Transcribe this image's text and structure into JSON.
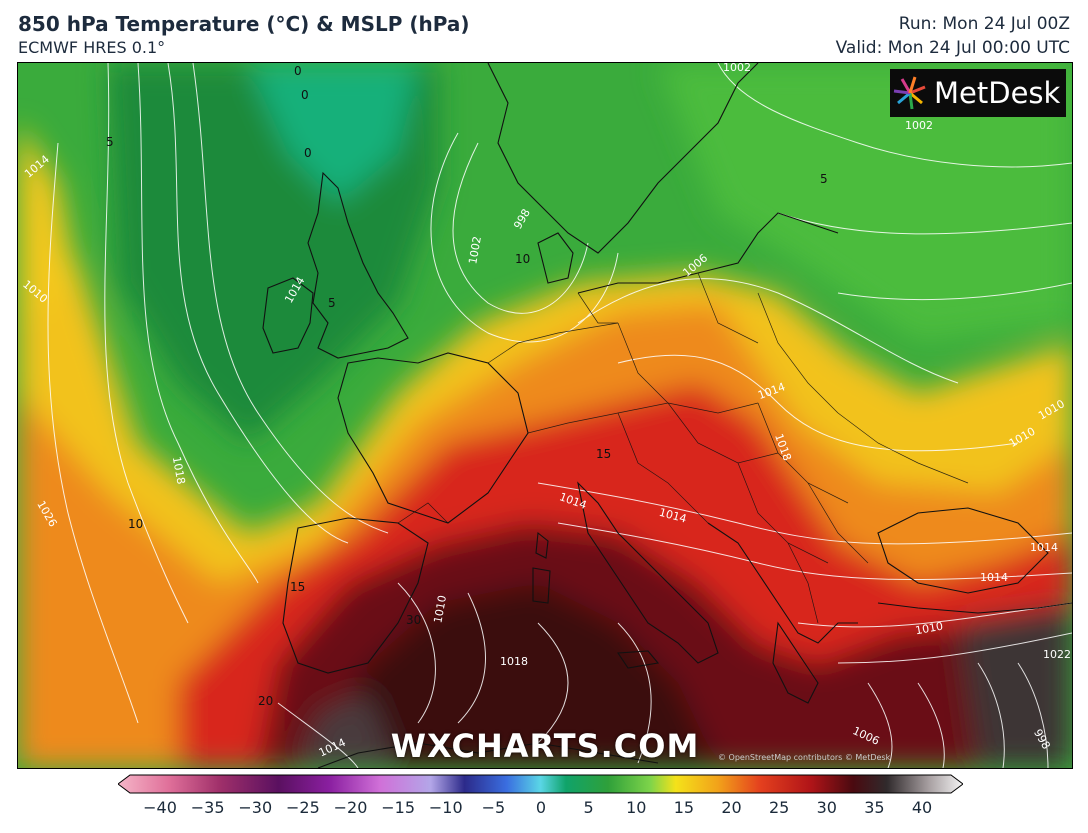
{
  "header": {
    "title": "850 hPa Temperature (°C) & MSLP (hPa)",
    "model": "ECMWF HRES 0.1°",
    "run": "Run: Mon 24 Jul 00Z",
    "valid": "Valid: Mon 24 Jul 00:00 UTC"
  },
  "logo": {
    "text": "MetDesk"
  },
  "watermark": "WXCHARTS.COM",
  "copyright": "© OpenStreetMap contributors © MetDesk",
  "map": {
    "temperature_labels": [
      "0",
      "0",
      "0",
      "5",
      "5",
      "5",
      "10",
      "10",
      "15",
      "15",
      "20",
      "30"
    ],
    "isobar_labels": [
      "1002",
      "1002",
      "998",
      "1002",
      "1006",
      "1014",
      "1010",
      "1014",
      "1018",
      "1018",
      "1014",
      "1010",
      "1014",
      "1014",
      "1022",
      "1026",
      "1014",
      "1014",
      "1010",
      "1018",
      "1014",
      "1010",
      "1006",
      "998",
      "1010"
    ]
  },
  "colorbar": {
    "ticks": [
      "−40",
      "−35",
      "−30",
      "−25",
      "−20",
      "−15",
      "−10",
      "−5",
      "0",
      "5",
      "10",
      "15",
      "20",
      "25",
      "30",
      "35",
      "40"
    ],
    "min": -40,
    "max": 40
  }
}
